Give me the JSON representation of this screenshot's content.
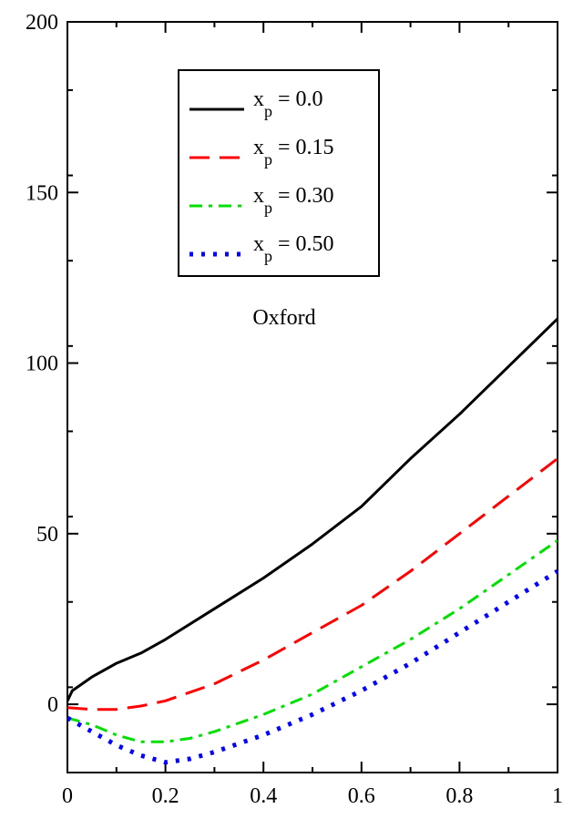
{
  "chart_data": {
    "type": "line",
    "title": "",
    "xlabel": "",
    "ylabel": "",
    "xlim": [
      0,
      1
    ],
    "ylim": [
      -20,
      200
    ],
    "x_ticks": [
      0,
      0.2,
      0.4,
      0.6,
      0.8,
      1
    ],
    "x_tick_labels": [
      "0",
      "0.2",
      "0.4",
      "0.6",
      "0.8",
      "1"
    ],
    "y_ticks": [
      0,
      50,
      100,
      150,
      200
    ],
    "y_tick_labels": [
      "0",
      "50",
      "100",
      "150",
      "200"
    ],
    "grid": false,
    "legend_position": "top-center",
    "annotation": "Oxford",
    "series": [
      {
        "name": "x_p = 0.0",
        "name_main": "x",
        "name_sub": "p",
        "name_rest": " = 0.0",
        "color": "#000000",
        "style": "solid",
        "x": [
          0,
          0.01,
          0.02,
          0.05,
          0.1,
          0.15,
          0.2,
          0.3,
          0.4,
          0.5,
          0.6,
          0.7,
          0.8,
          0.9,
          1.0
        ],
        "y": [
          1,
          4,
          5,
          8,
          12,
          15,
          19,
          28,
          37,
          47,
          58,
          72,
          85,
          99,
          113
        ]
      },
      {
        "name": "x_p = 0.15",
        "name_main": "x",
        "name_sub": "p",
        "name_rest": " = 0.15",
        "color": "#ff0000",
        "style": "dashed",
        "x": [
          0,
          0.05,
          0.1,
          0.15,
          0.2,
          0.3,
          0.4,
          0.5,
          0.6,
          0.7,
          0.8,
          0.9,
          1.0
        ],
        "y": [
          -1,
          -1.5,
          -1.5,
          -0.5,
          1,
          6,
          13,
          21,
          29,
          39,
          50,
          61,
          72
        ]
      },
      {
        "name": "x_p = 0.30",
        "name_main": "x",
        "name_sub": "p",
        "name_rest": " = 0.30",
        "color": "#00e000",
        "style": "dashdot",
        "x": [
          0,
          0.05,
          0.1,
          0.15,
          0.2,
          0.25,
          0.3,
          0.4,
          0.5,
          0.6,
          0.7,
          0.8,
          0.9,
          1.0
        ],
        "y": [
          -4,
          -6,
          -9,
          -11,
          -11,
          -10,
          -8,
          -3,
          3,
          11,
          19,
          28,
          38,
          48
        ]
      },
      {
        "name": "x_p = 0.50",
        "name_main": "x",
        "name_sub": "p",
        "name_rest": " = 0.50",
        "color": "#0000ff",
        "style": "dotted",
        "x": [
          0,
          0.05,
          0.1,
          0.15,
          0.2,
          0.25,
          0.3,
          0.4,
          0.5,
          0.6,
          0.7,
          0.8,
          0.9,
          1.0
        ],
        "y": [
          -4,
          -8,
          -12,
          -15,
          -17,
          -16,
          -14,
          -9,
          -3,
          4,
          12,
          21,
          30,
          39
        ]
      }
    ]
  }
}
